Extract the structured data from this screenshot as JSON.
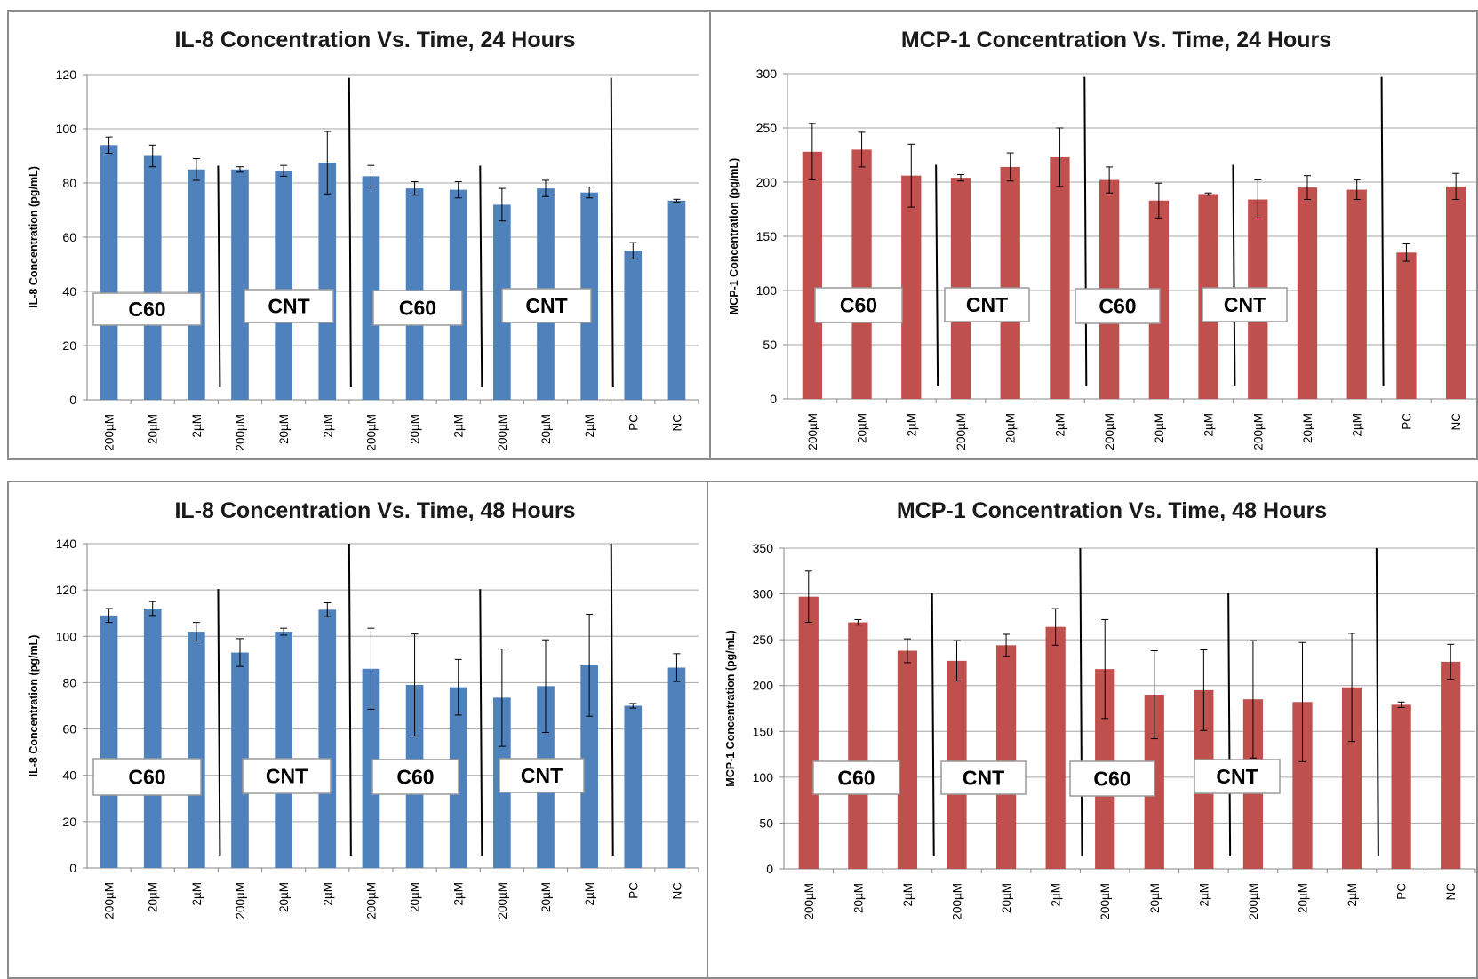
{
  "chart_data": [
    {
      "type": "bar",
      "title": "IL-8 Concentration Vs. Time, 24 Hours",
      "ylabel": "IL-8 Concentration (pg/mL)",
      "ylim": [
        0,
        120
      ],
      "yticks": [
        0,
        20,
        40,
        60,
        80,
        100,
        120
      ],
      "grid": true,
      "color": "#4f81bd",
      "categories": [
        "200µM",
        "20µM",
        "2µM",
        "200µM",
        "20µM",
        "2µM",
        "200µM",
        "20µM",
        "2µM",
        "200µM",
        "20µM",
        "2µM",
        "PC",
        "NC"
      ],
      "values": [
        94,
        90,
        85,
        85,
        84.5,
        87.5,
        82.5,
        78,
        77.5,
        72,
        78,
        76.5,
        55,
        73.5
      ],
      "errors": [
        3,
        4,
        4,
        1,
        2,
        11.5,
        4,
        2.5,
        3,
        6,
        3,
        2,
        3,
        0.5
      ],
      "group_labels": [
        "C60",
        "CNT",
        "C60",
        "CNT"
      ]
    },
    {
      "type": "bar",
      "title": "MCP-1 Concentration Vs. Time, 24 Hours",
      "ylabel": "MCP-1 Concentration (pg/mL)",
      "ylim": [
        0,
        300
      ],
      "yticks": [
        0,
        50,
        100,
        150,
        200,
        250,
        300
      ],
      "grid": true,
      "color": "#c0504d",
      "categories": [
        "200µM",
        "20µM",
        "2µM",
        "200µM",
        "20µM",
        "2µM",
        "200µM",
        "20µM",
        "2µM",
        "200µM",
        "20µM",
        "2µM",
        "PC",
        "NC"
      ],
      "values": [
        228,
        230,
        206,
        204,
        214,
        223,
        202,
        183,
        189,
        184,
        195,
        193,
        135,
        196
      ],
      "errors": [
        26,
        16,
        29,
        3,
        13,
        27,
        12,
        16,
        1,
        18,
        11,
        9,
        8,
        12
      ],
      "group_labels": [
        "C60",
        "CNT",
        "C60",
        "CNT"
      ]
    },
    {
      "type": "bar",
      "title": "IL-8 Concentration Vs. Time, 48 Hours",
      "ylabel": "IL-8 Concentration (pg/mL)",
      "ylim": [
        0,
        140
      ],
      "yticks": [
        0,
        20,
        40,
        60,
        80,
        100,
        120,
        140
      ],
      "grid": true,
      "color": "#4f81bd",
      "categories": [
        "200µM",
        "20µM",
        "2µM",
        "200µM",
        "20µM",
        "2µM",
        "200µM",
        "20µM",
        "2µM",
        "200µM",
        "20µM",
        "2µM",
        "PC",
        "NC"
      ],
      "values": [
        109,
        112,
        102,
        93,
        102,
        111.5,
        86,
        79,
        78,
        73.5,
        78.5,
        87.5,
        70,
        86.5
      ],
      "errors": [
        3,
        3,
        4,
        6,
        1.5,
        3,
        17.5,
        22,
        12,
        21,
        20,
        22,
        1,
        6
      ],
      "group_labels": [
        "C60",
        "CNT",
        "C60",
        "CNT"
      ]
    },
    {
      "type": "bar",
      "title": "MCP-1 Concentration Vs. Time, 48 Hours",
      "ylabel": "MCP-1 Concentration (pg/mL)",
      "ylim": [
        0,
        350
      ],
      "yticks": [
        0,
        50,
        100,
        150,
        200,
        250,
        300,
        350
      ],
      "grid": true,
      "color": "#c0504d",
      "categories": [
        "200µM",
        "20µM",
        "2µM",
        "200µM",
        "20µM",
        "2µM",
        "200µM",
        "20µM",
        "2µM",
        "200µM",
        "20µM",
        "2µM",
        "PC",
        "NC"
      ],
      "values": [
        297,
        269,
        238,
        227,
        244,
        264,
        218,
        190,
        195,
        185,
        182,
        198,
        179,
        226
      ],
      "errors": [
        28,
        3,
        13,
        22,
        12,
        20,
        54,
        48,
        44,
        64,
        65,
        59,
        3,
        19
      ],
      "group_labels": [
        "C60",
        "CNT",
        "C60",
        "CNT"
      ]
    }
  ]
}
